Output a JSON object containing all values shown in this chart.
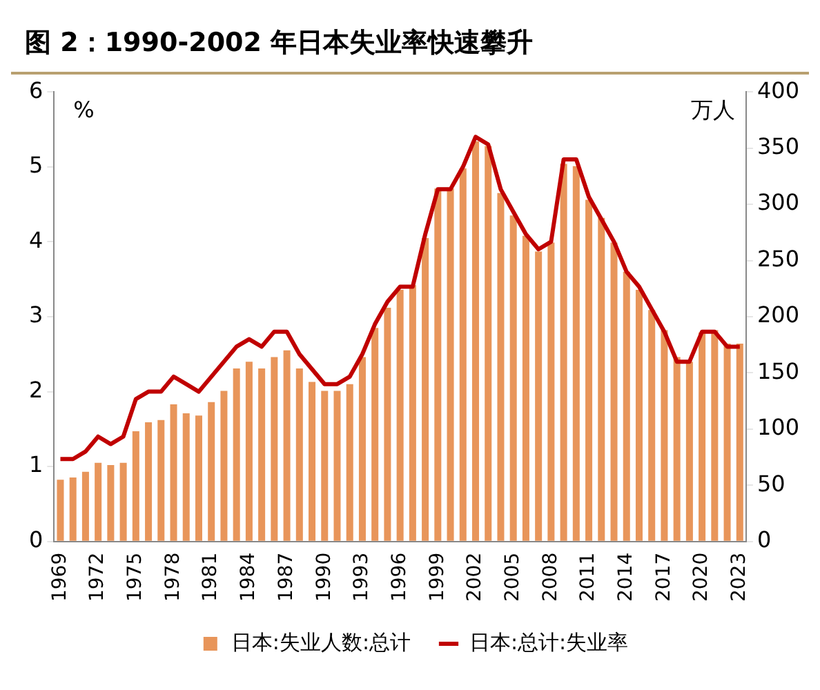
{
  "chart_data": {
    "type": "bar",
    "title": "图 2：1990-2002 年日本失业率快速攀升",
    "ylabel": "%",
    "y2label": "万人",
    "categories": [
      "1969",
      null,
      null,
      "1972",
      null,
      null,
      "1975",
      null,
      null,
      "1978",
      null,
      null,
      "1981",
      null,
      null,
      "1984",
      null,
      null,
      "1987",
      null,
      null,
      "1990",
      null,
      null,
      "1993",
      null,
      null,
      "1996",
      null,
      null,
      "1999",
      null,
      null,
      "2002",
      null,
      null,
      "2005",
      null,
      null,
      "2008",
      null,
      null,
      "2011",
      null,
      null,
      "2014",
      null,
      null,
      "2017",
      null,
      null,
      "2020",
      null,
      null,
      "2023"
    ],
    "series": [
      {
        "name": "日本:失业人数:总计",
        "axis": "y2",
        "color": "#e8955a",
        "values": [
          55,
          57,
          62,
          70,
          68,
          70,
          98,
          106,
          108,
          122,
          114,
          112,
          124,
          134,
          154,
          160,
          154,
          164,
          170,
          154,
          142,
          134,
          134,
          140,
          164,
          190,
          208,
          224,
          228,
          270,
          314,
          314,
          332,
          356,
          352,
          310,
          290,
          272,
          258,
          266,
          336,
          334,
          304,
          288,
          266,
          240,
          224,
          206,
          188,
          164,
          160,
          186,
          188,
          176,
          176
        ]
      },
      {
        "name": "日本:总计:失业率",
        "type": "line",
        "axis": "y",
        "color": "#c00000",
        "values": [
          1.1,
          1.1,
          1.2,
          1.4,
          1.3,
          1.4,
          1.9,
          2.0,
          2.0,
          2.2,
          2.1,
          2.0,
          2.2,
          2.4,
          2.6,
          2.7,
          2.6,
          2.8,
          2.8,
          2.5,
          2.3,
          2.1,
          2.1,
          2.2,
          2.5,
          2.9,
          3.2,
          3.4,
          3.4,
          4.1,
          4.7,
          4.7,
          5.0,
          5.4,
          5.3,
          4.7,
          4.4,
          4.1,
          3.9,
          4.0,
          5.1,
          5.1,
          4.6,
          4.3,
          4.0,
          3.6,
          3.4,
          3.1,
          2.8,
          2.4,
          2.4,
          2.8,
          2.8,
          2.6,
          2.6
        ]
      }
    ],
    "ylim": [
      0,
      6
    ],
    "yticks": [
      0,
      1,
      2,
      3,
      4,
      5,
      6
    ],
    "y2lim": [
      0,
      400
    ],
    "y2ticks": [
      0,
      50,
      100,
      150,
      200,
      250,
      300,
      350,
      400
    ],
    "grid": false,
    "legend": "bottom",
    "marker": "none",
    "line_style": "solid"
  }
}
